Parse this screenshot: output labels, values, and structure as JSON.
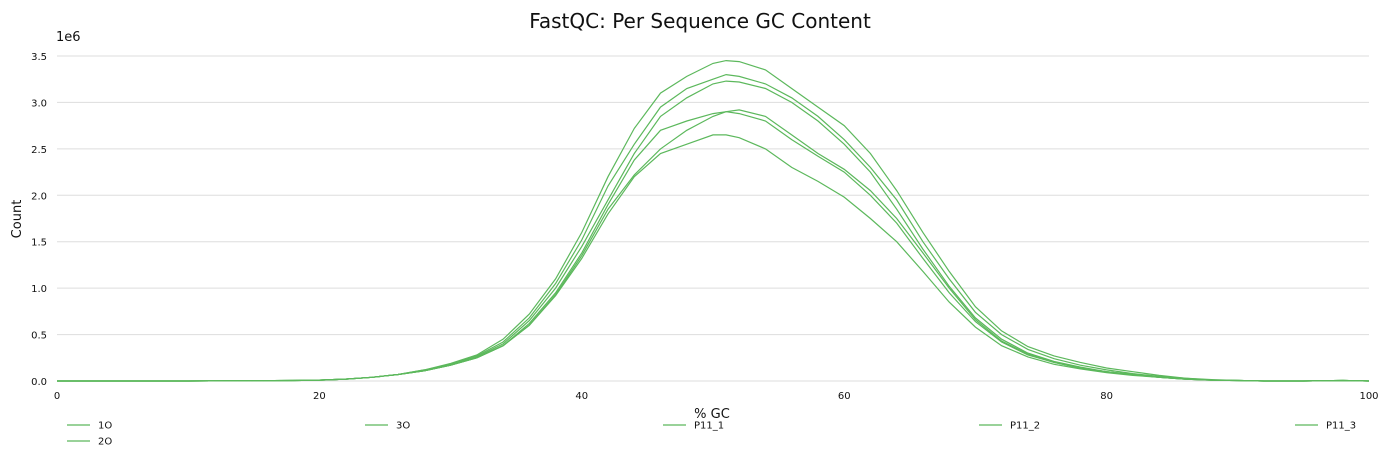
{
  "chart_data": {
    "type": "line",
    "title": "FastQC: Per Sequence GC Content",
    "xlabel": "% GC",
    "ylabel": "Count",
    "y_multiplier_label": "1e6",
    "xlim": [
      0,
      100
    ],
    "ylim": [
      0,
      3.5
    ],
    "x_ticks": [
      0,
      20,
      40,
      60,
      80,
      100
    ],
    "x_tick_labels": [
      "0",
      "20",
      "40",
      "60",
      "80",
      "100"
    ],
    "y_ticks": [
      0,
      0.5,
      1.0,
      1.5,
      2.0,
      2.5,
      3.0,
      3.5
    ],
    "y_tick_labels": [
      "0.0",
      "0.5",
      "1.0",
      "1.5",
      "2.0",
      "2.5",
      "3.0",
      "3.5"
    ],
    "grid": "horizontal",
    "legend_position": "bottom",
    "line_color": "#5cb85c",
    "x": [
      0,
      10,
      18,
      20,
      22,
      24,
      26,
      28,
      30,
      32,
      34,
      36,
      38,
      40,
      42,
      44,
      46,
      48,
      50,
      51,
      52,
      54,
      56,
      58,
      60,
      62,
      64,
      66,
      68,
      70,
      72,
      74,
      76,
      78,
      80,
      82,
      84,
      86,
      88,
      90,
      92,
      95,
      98,
      100
    ],
    "series": [
      {
        "name": "1O",
        "values": [
          0,
          0,
          0.005,
          0.01,
          0.02,
          0.04,
          0.07,
          0.11,
          0.17,
          0.26,
          0.4,
          0.65,
          1.0,
          1.45,
          1.95,
          2.45,
          2.85,
          3.05,
          3.2,
          3.23,
          3.22,
          3.15,
          3.0,
          2.8,
          2.55,
          2.25,
          1.85,
          1.42,
          1.02,
          0.68,
          0.45,
          0.3,
          0.21,
          0.15,
          0.1,
          0.07,
          0.04,
          0.02,
          0.01,
          0.005,
          0,
          0,
          0.005,
          0
        ]
      },
      {
        "name": "2O",
        "values": [
          0,
          0,
          0.005,
          0.01,
          0.02,
          0.04,
          0.07,
          0.11,
          0.17,
          0.25,
          0.38,
          0.62,
          0.95,
          1.38,
          1.9,
          2.38,
          2.7,
          2.8,
          2.88,
          2.9,
          2.88,
          2.8,
          2.6,
          2.42,
          2.25,
          2.0,
          1.7,
          1.32,
          0.95,
          0.64,
          0.42,
          0.28,
          0.2,
          0.14,
          0.1,
          0.07,
          0.04,
          0.02,
          0.01,
          0.005,
          0,
          0,
          0.005,
          0
        ]
      },
      {
        "name": "3O",
        "values": [
          0,
          0,
          0.005,
          0.01,
          0.02,
          0.04,
          0.07,
          0.11,
          0.17,
          0.25,
          0.38,
          0.6,
          0.92,
          1.32,
          1.8,
          2.2,
          2.45,
          2.55,
          2.65,
          2.65,
          2.62,
          2.5,
          2.3,
          2.15,
          1.98,
          1.75,
          1.5,
          1.18,
          0.85,
          0.58,
          0.38,
          0.26,
          0.18,
          0.13,
          0.09,
          0.06,
          0.04,
          0.02,
          0.01,
          0.005,
          0,
          0,
          0.005,
          0
        ]
      },
      {
        "name": "P11_1",
        "values": [
          0,
          0,
          0.005,
          0.01,
          0.02,
          0.04,
          0.07,
          0.12,
          0.19,
          0.28,
          0.45,
          0.72,
          1.1,
          1.6,
          2.2,
          2.72,
          3.1,
          3.28,
          3.42,
          3.45,
          3.44,
          3.35,
          3.15,
          2.95,
          2.75,
          2.45,
          2.05,
          1.6,
          1.18,
          0.8,
          0.54,
          0.37,
          0.27,
          0.2,
          0.14,
          0.1,
          0.06,
          0.03,
          0.015,
          0.005,
          0,
          0,
          0.005,
          0
        ]
      },
      {
        "name": "P11_2",
        "values": [
          0,
          0,
          0.005,
          0.01,
          0.02,
          0.04,
          0.07,
          0.12,
          0.18,
          0.27,
          0.42,
          0.68,
          1.05,
          1.52,
          2.1,
          2.55,
          2.95,
          3.15,
          3.25,
          3.3,
          3.28,
          3.2,
          3.05,
          2.85,
          2.6,
          2.3,
          1.95,
          1.5,
          1.1,
          0.74,
          0.5,
          0.34,
          0.24,
          0.17,
          0.12,
          0.08,
          0.05,
          0.03,
          0.01,
          0.005,
          0,
          0,
          0.005,
          0
        ]
      },
      {
        "name": "P11_3",
        "values": [
          0,
          0,
          0.005,
          0.01,
          0.02,
          0.04,
          0.07,
          0.11,
          0.17,
          0.25,
          0.38,
          0.6,
          0.93,
          1.35,
          1.85,
          2.22,
          2.5,
          2.7,
          2.85,
          2.9,
          2.92,
          2.85,
          2.65,
          2.45,
          2.28,
          2.05,
          1.75,
          1.38,
          1.0,
          0.66,
          0.43,
          0.29,
          0.2,
          0.14,
          0.1,
          0.07,
          0.04,
          0.02,
          0.01,
          0.005,
          0,
          0,
          0.005,
          0
        ]
      }
    ]
  }
}
